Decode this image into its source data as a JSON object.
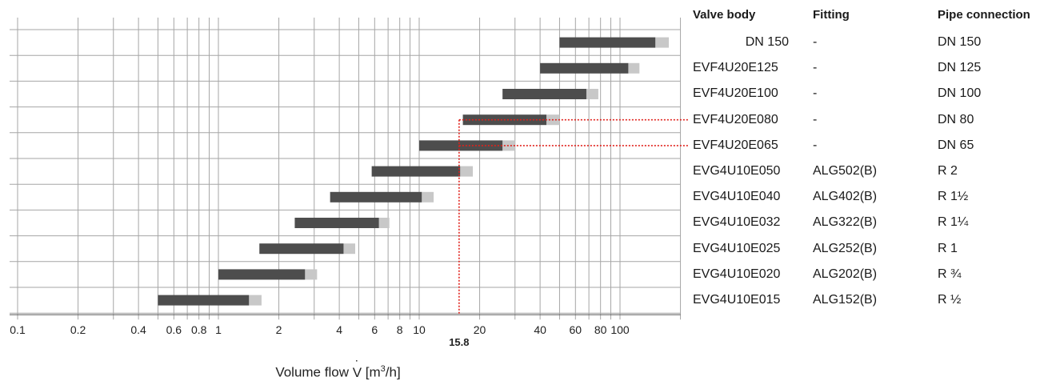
{
  "chart_data": {
    "type": "bar",
    "orientation": "horizontal-range",
    "x_scale": "log",
    "xlim": [
      0.1,
      200
    ],
    "xlabel_text": "Volume flow ",
    "xlabel_symbol": "V",
    "xlabel_unit_open": " [m",
    "xlabel_unit_exp": "3",
    "xlabel_unit_close": "/h]",
    "x_ticks": [
      {
        "value": 0.1,
        "label": "0.1"
      },
      {
        "value": 0.2,
        "label": "0.2"
      },
      {
        "value": 0.4,
        "label": "0.4"
      },
      {
        "value": 0.6,
        "label": "0.6"
      },
      {
        "value": 0.8,
        "label": "0.8"
      },
      {
        "value": 1,
        "label": "1"
      },
      {
        "value": 2,
        "label": "2"
      },
      {
        "value": 4,
        "label": "4"
      },
      {
        "value": 6,
        "label": "6"
      },
      {
        "value": 8,
        "label": "8"
      },
      {
        "value": 10,
        "label": "10"
      },
      {
        "value": 20,
        "label": "20"
      },
      {
        "value": 40,
        "label": "40"
      },
      {
        "value": 60,
        "label": "60"
      },
      {
        "value": 80,
        "label": "80"
      },
      {
        "value": 100,
        "label": "100"
      }
    ],
    "grid_lines": [
      0.1,
      0.2,
      0.3,
      0.4,
      0.5,
      0.6,
      0.7,
      0.8,
      0.9,
      1,
      2,
      3,
      4,
      5,
      6,
      7,
      8,
      9,
      10,
      20,
      30,
      40,
      50,
      60,
      70,
      80,
      90,
      100,
      200
    ],
    "bars": [
      {
        "row": 0,
        "start": 50,
        "end": 150,
        "ext_end": 175
      },
      {
        "row": 1,
        "start": 40,
        "end": 110,
        "ext_end": 125
      },
      {
        "row": 2,
        "start": 26,
        "end": 68,
        "ext_end": 78
      },
      {
        "row": 3,
        "start": 16.5,
        "end": 43,
        "ext_end": 50
      },
      {
        "row": 4,
        "start": 10,
        "end": 26,
        "ext_end": 30
      },
      {
        "row": 5,
        "start": 5.8,
        "end": 16,
        "ext_end": 18.5
      },
      {
        "row": 6,
        "start": 3.6,
        "end": 10.3,
        "ext_end": 11.8
      },
      {
        "row": 7,
        "start": 2.4,
        "end": 6.3,
        "ext_end": 7.1
      },
      {
        "row": 8,
        "start": 1.6,
        "end": 4.2,
        "ext_end": 4.8
      },
      {
        "row": 9,
        "start": 1.0,
        "end": 2.7,
        "ext_end": 3.1
      },
      {
        "row": 10,
        "start": 0.5,
        "end": 1.42,
        "ext_end": 1.64
      }
    ],
    "highlight": {
      "value": 15.8,
      "label": "15.8",
      "rows": [
        3,
        4
      ]
    },
    "colors": {
      "bar": "#4d4d4d",
      "bar_ext": "#c8c8c8",
      "grid": "#a6a6a6",
      "axis": "#666666",
      "highlight": "#e0201b"
    }
  },
  "table": {
    "headers": {
      "valve_body": "Valve body",
      "fitting": "Fitting",
      "pipe_connection": "Pipe connection"
    },
    "rows": [
      {
        "valve_body": "DN 150",
        "fitting": "-",
        "pipe_connection": "DN 150"
      },
      {
        "valve_body": "EVF4U20E125",
        "fitting": "-",
        "pipe_connection": "DN 125"
      },
      {
        "valve_body": "EVF4U20E100",
        "fitting": "-",
        "pipe_connection": "DN 100"
      },
      {
        "valve_body": "EVF4U20E080",
        "fitting": "-",
        "pipe_connection": "DN 80"
      },
      {
        "valve_body": "EVF4U20E065",
        "fitting": "-",
        "pipe_connection": "DN 65"
      },
      {
        "valve_body": "EVG4U10E050",
        "fitting": "ALG502(B)",
        "pipe_connection": "R 2"
      },
      {
        "valve_body": "EVG4U10E040",
        "fitting": "ALG402(B)",
        "pipe_connection": "R 1½"
      },
      {
        "valve_body": "EVG4U10E032",
        "fitting": "ALG322(B)",
        "pipe_connection": "R 1¼"
      },
      {
        "valve_body": "EVG4U10E025",
        "fitting": "ALG252(B)",
        "pipe_connection": "R 1"
      },
      {
        "valve_body": "EVG4U10E020",
        "fitting": "ALG202(B)",
        "pipe_connection": "R ¾"
      },
      {
        "valve_body": "EVG4U10E015",
        "fitting": "ALG152(B)",
        "pipe_connection": "R ½"
      }
    ]
  }
}
